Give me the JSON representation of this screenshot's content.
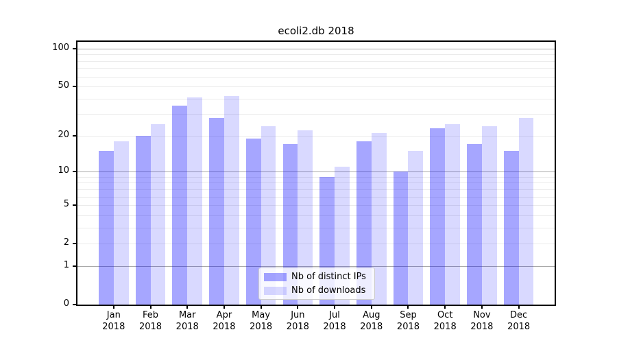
{
  "title": "ecoli2.db 2018",
  "chart_data": {
    "type": "bar",
    "title": "ecoli2.db 2018",
    "categories": [
      "Jan 2018",
      "Feb 2018",
      "Mar 2018",
      "Apr 2018",
      "May 2018",
      "Jun 2018",
      "Jul 2018",
      "Aug 2018",
      "Sep 2018",
      "Oct 2018",
      "Nov 2018",
      "Dec 2018"
    ],
    "series": [
      {
        "name": "Nb of distinct IPs",
        "color": "rgba(0,0,255,0.35)",
        "color_hex": "#a6a6ff",
        "values": [
          15,
          20,
          35,
          28,
          19,
          17,
          9,
          18,
          10,
          23,
          17,
          15
        ]
      },
      {
        "name": "Nb of downloads",
        "color": "rgba(0,0,255,0.15)",
        "color_hex": "#d9d9ff",
        "values": [
          18,
          25,
          41,
          42,
          24,
          22,
          11,
          21,
          15,
          25,
          24,
          28
        ]
      }
    ],
    "xlabel": "",
    "ylabel": "",
    "yscale": "log1p",
    "ylim": [
      0,
      114
    ],
    "ytick_values": [
      0,
      1,
      2,
      5,
      10,
      20,
      50,
      100
    ],
    "ytick_labels": [
      "0",
      "1",
      "2",
      "5",
      "10",
      "20",
      "50",
      "100"
    ],
    "grid_major_values": [
      1,
      10,
      100
    ],
    "grid_minor_values": [
      2,
      3,
      4,
      5,
      6,
      7,
      8,
      9,
      20,
      30,
      40,
      50,
      60,
      70,
      80,
      90
    ],
    "grid": true,
    "legend_position": "bottom-center"
  },
  "colors": {
    "background": "#ffffff",
    "axis": "#000000",
    "grid_major": "#a9a9a9",
    "grid_minor": "#ebebeb"
  }
}
